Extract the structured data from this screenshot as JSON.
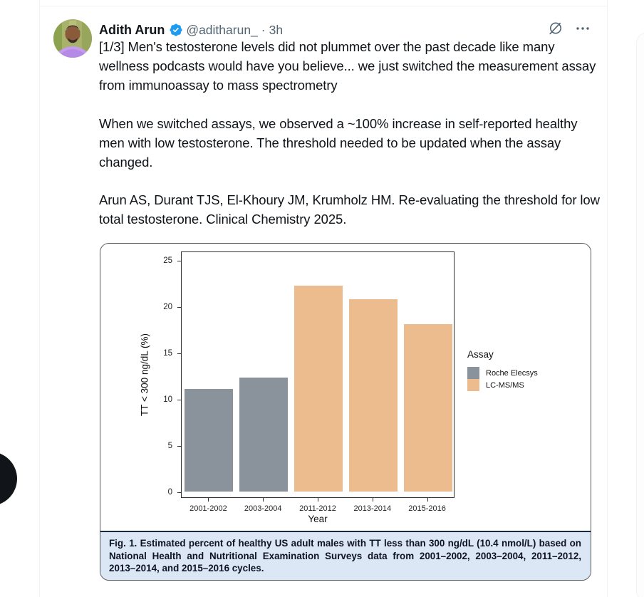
{
  "tweet": {
    "author": "Adith Arun",
    "handle": "@aditharun_",
    "separator": "·",
    "time": "3h",
    "paragraphs": [
      "[1/3] Men's testosterone levels did not plummet over the past decade like many wellness podcasts would have you believe... we just switched the measurement assay from immunoassay to mass spectrometry",
      "When we switched assays, we observed a ~100% increase in self-reported healthy men with low testosterone. The threshold needed to be updated when the assay changed.",
      "Arun AS, Durant TJS, El-Khoury JM, Krumholz HM. Re-evaluating the threshold for low total testosterone. Clinical Chemistry 2025."
    ],
    "accent_color": "#1d9bf0",
    "muted_color": "#536471"
  },
  "figure": {
    "caption_label": "Fig. 1.",
    "caption_text": " Estimated percent of healthy US adult males with TT less than 300 ng/dL (10.4 nmol/L) based on National Health and Nutritional Examination Surveys data from 2001–2002, 2003–2004, 2011–2012, 2013–2014, and 2015–2016 cycles.",
    "caption_bg": "#dce7f6"
  },
  "chart_data": {
    "type": "bar",
    "title": "",
    "categories": [
      "2001-2002",
      "2003-2004",
      "2011-2012",
      "2013-2014",
      "2015-2016"
    ],
    "values": [
      11.1,
      12.3,
      22.2,
      20.8,
      18.1
    ],
    "bar_assays": [
      "Roche Elecsys",
      "Roche Elecsys",
      "LC-MS/MS",
      "LC-MS/MS",
      "LC-MS/MS"
    ],
    "series_colors": {
      "Roche Elecsys": "#8a939b",
      "LC-MS/MS": "#edbc8e"
    },
    "xlabel": "Year",
    "ylabel": "TT < 300 ng/dL (%)",
    "yticks": [
      0,
      5,
      10,
      15,
      20,
      25
    ],
    "ylim": [
      -0.62,
      26.0
    ],
    "grid": false,
    "legend_position": "right",
    "legend_title": "Assay",
    "legend": [
      {
        "label": "Roche Elecsys",
        "color": "#8a939b"
      },
      {
        "label": "LC-MS/MS",
        "color": "#edbc8e"
      }
    ]
  }
}
